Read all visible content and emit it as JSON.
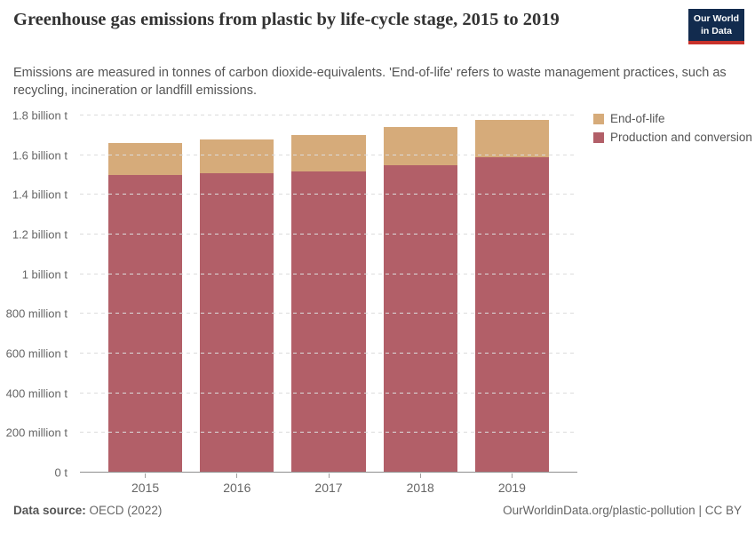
{
  "header": {
    "title": "Greenhouse gas emissions from plastic by life-cycle stage, 2015 to 2019",
    "subtitle": "Emissions are measured in tonnes of carbon dioxide-equivalents. 'End-of-life' refers to waste management practices, such as recycling, incineration or landfill emissions.",
    "logo": {
      "line1": "Our World",
      "line2": "in Data",
      "bg_color": "#122B4E",
      "accent_color": "#C8322B"
    }
  },
  "chart_data": {
    "type": "bar",
    "stacked": true,
    "grid": "dashed-horizontal",
    "legend_position": "top-right",
    "title": "Greenhouse gas emissions from plastic by life-cycle stage, 2015 to 2019",
    "xlabel": "",
    "ylabel": "",
    "unit": "tonnes of CO2-equivalents",
    "categories": [
      "2015",
      "2016",
      "2017",
      "2018",
      "2019"
    ],
    "series": [
      {
        "name": "Production and conversion",
        "color": "#B25F68",
        "values_billion_t": [
          1.5,
          1.51,
          1.52,
          1.55,
          1.59
        ]
      },
      {
        "name": "End-of-life",
        "color": "#D6AB7A",
        "values_billion_t": [
          0.16,
          0.17,
          0.18,
          0.19,
          0.19
        ]
      }
    ],
    "totals_billion_t": [
      1.66,
      1.68,
      1.7,
      1.74,
      1.78
    ],
    "ylim": [
      0,
      1.8
    ],
    "y_ticks": [
      {
        "value": 0,
        "label": "0 t"
      },
      {
        "value": 0.2,
        "label": "200 million t"
      },
      {
        "value": 0.4,
        "label": "400 million t"
      },
      {
        "value": 0.6,
        "label": "600 million t"
      },
      {
        "value": 0.8,
        "label": "800 million t"
      },
      {
        "value": 1,
        "label": "1 billion t"
      },
      {
        "value": 1.2,
        "label": "1.2 billion t"
      },
      {
        "value": 1.4,
        "label": "1.4 billion t"
      },
      {
        "value": 1.6,
        "label": "1.6 billion t"
      },
      {
        "value": 1.8,
        "label": "1.8 billion t"
      }
    ]
  },
  "footer": {
    "datasource_label": "Data source:",
    "datasource_value": "OECD (2022)",
    "link": "OurWorldinData.org/plastic-pollution",
    "separator": "|",
    "license": "CC BY"
  }
}
